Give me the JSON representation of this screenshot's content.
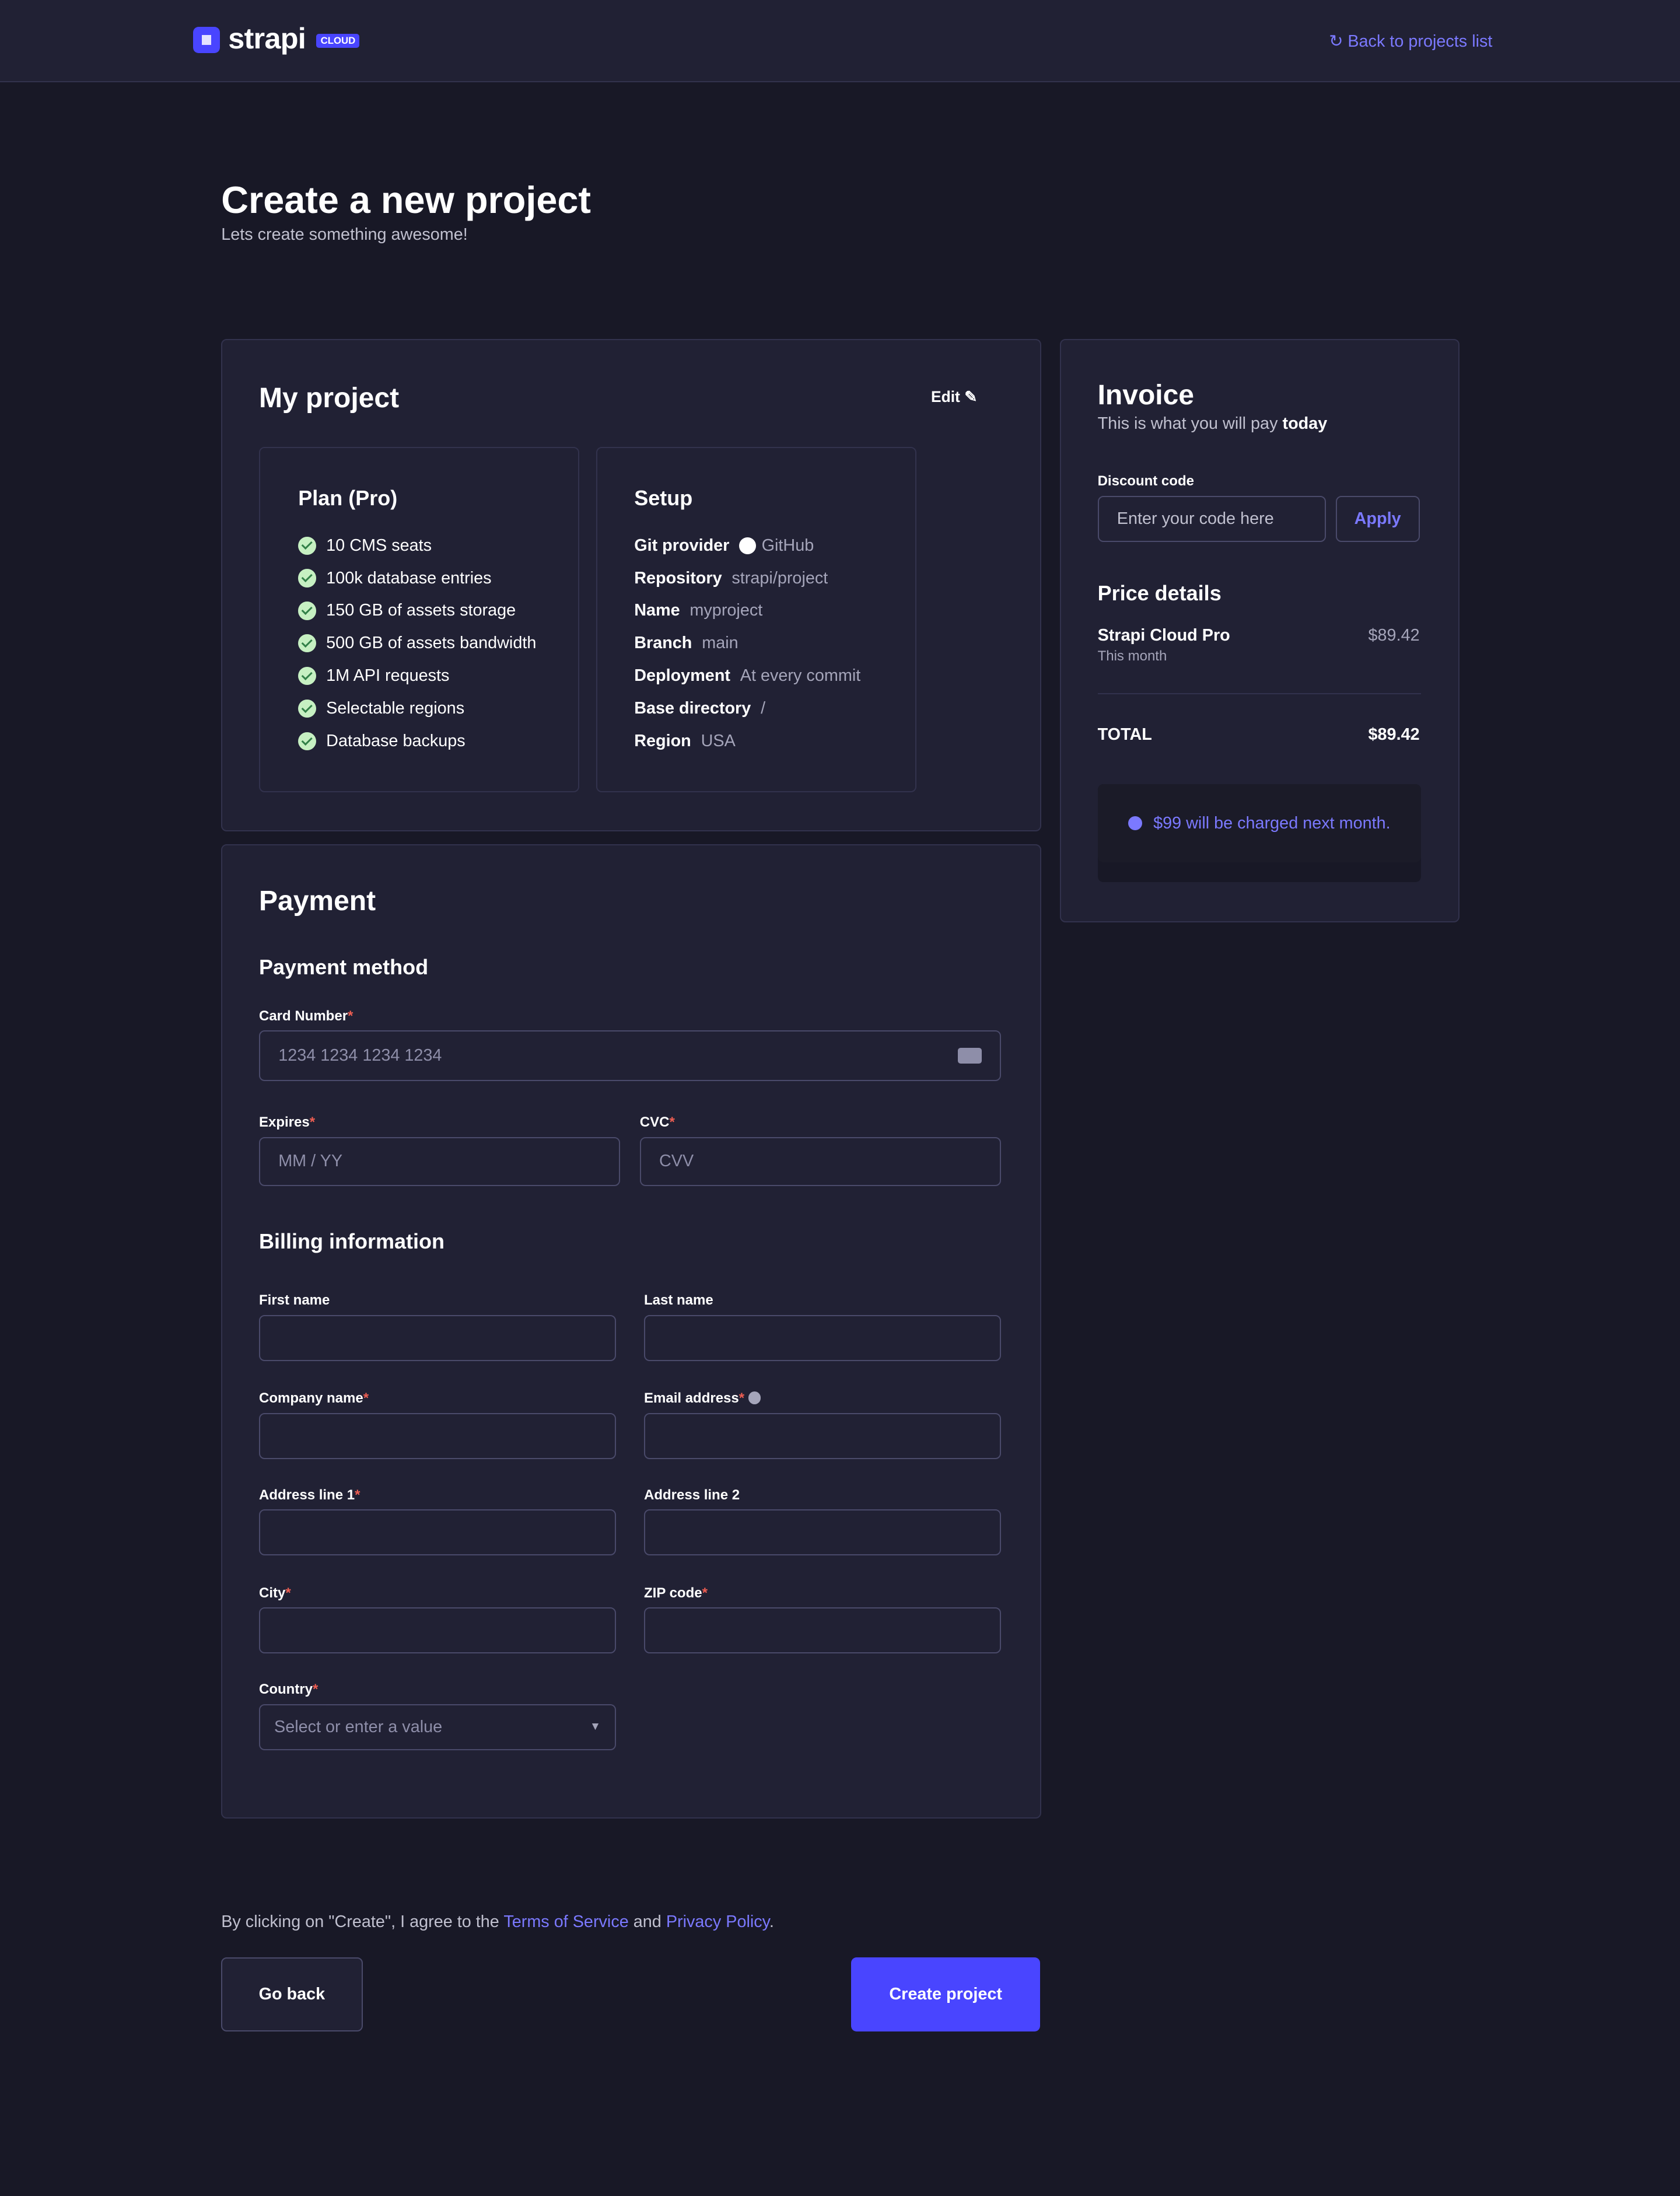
{
  "header": {
    "logo_text": "strapi",
    "logo_badge": "CLOUD",
    "back_link": "Back to projects list"
  },
  "page": {
    "title": "Create a new project",
    "subtitle": "Lets create something awesome!"
  },
  "project": {
    "title": "My project",
    "edit_label": "Edit",
    "plan": {
      "title": "Plan (Pro)",
      "features": [
        "10 CMS seats",
        "100k database entries",
        "150 GB of assets storage",
        "500 GB of assets bandwidth",
        "1M API requests",
        "Selectable regions",
        "Database backups"
      ]
    },
    "setup": {
      "title": "Setup",
      "rows": [
        {
          "key": "Git provider",
          "value": "GitHub"
        },
        {
          "key": "Repository",
          "value": "strapi/project"
        },
        {
          "key": "Name",
          "value": "myproject"
        },
        {
          "key": "Branch",
          "value": "main"
        },
        {
          "key": "Deployment",
          "value": "At every commit"
        },
        {
          "key": "Base directory",
          "value": "/"
        },
        {
          "key": "Region",
          "value": "USA"
        }
      ]
    }
  },
  "payment": {
    "title": "Payment",
    "method_title": "Payment method",
    "card_label": "Card Number",
    "card_placeholder": "1234 1234 1234 1234",
    "expires_label": "Expires",
    "expires_placeholder": "MM / YY",
    "cvc_label": "CVC",
    "cvc_placeholder": "CVV",
    "billing_title": "Billing information",
    "first_name": "First name",
    "last_name": "Last name",
    "company": "Company name",
    "email": "Email address",
    "address1": "Address line 1",
    "address2": "Address line 2",
    "city": "City",
    "zip": "ZIP code",
    "country": "Country",
    "country_placeholder": "Select or enter a value"
  },
  "invoice": {
    "title": "Invoice",
    "subtitle": "This is what you will pay",
    "subtitle_strong": "today",
    "discount_label": "Discount code",
    "discount_placeholder": "Enter your code here",
    "apply": "Apply",
    "price_title": "Price details",
    "item_name": "Strapi Cloud Pro",
    "item_period": "This month",
    "item_price": "$89.42",
    "total_label": "TOTAL",
    "total_value": "$89.42",
    "notice": "$99 will be charged next month."
  },
  "footer": {
    "agree_prefix": "By clicking on \"Create\", I agree to the",
    "terms": "Terms of Service",
    "and": "and",
    "privacy": "Privacy Policy",
    "period": ".",
    "go_back": "Go back",
    "create": "Create project"
  },
  "colors": {
    "accent": "#4945ff",
    "link": "#7b79ff",
    "background": "#181826",
    "panel": "#212134"
  }
}
